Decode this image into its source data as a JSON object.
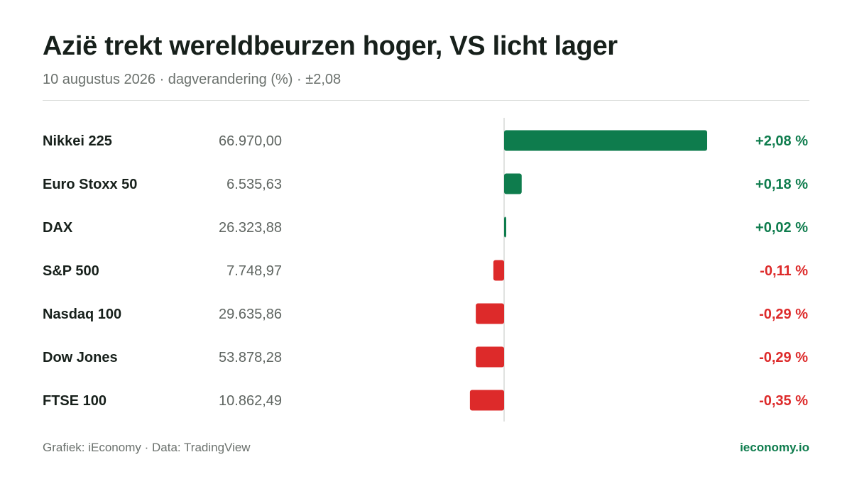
{
  "header": {
    "title": "Azië trekt wereldbeurzen hoger, VS licht lager",
    "subtitle": "10 augustus 2026 · dagverandering (%) · ±2,08"
  },
  "footer": {
    "source": "Grafiek: iEconomy · Data: TradingView",
    "brand": "ieconomy.io"
  },
  "colors": {
    "positive": "#0e7c4d",
    "negative": "#dd2a2a",
    "axis": "#d5d8d6",
    "label": "#17201b",
    "price": "#5f6561"
  },
  "chart_data": {
    "type": "bar",
    "orientation": "horizontal",
    "title": "Azië trekt wereldbeurzen hoger, VS licht lager",
    "subtitle": "10 augustus 2026 · dagverandering (%) · ±2,08",
    "xlim": [
      -2.08,
      2.08
    ],
    "grid": false,
    "categories": [
      "Nikkei 225",
      "Euro Stoxx 50",
      "DAX",
      "S&P 500",
      "Nasdaq 100",
      "Dow Jones",
      "FTSE 100"
    ],
    "prices": [
      "66.970,00",
      "6.535,63",
      "26.323,88",
      "7.748,97",
      "29.635,86",
      "53.878,28",
      "10.862,49"
    ],
    "values": [
      2.08,
      0.18,
      0.02,
      -0.11,
      -0.29,
      -0.29,
      -0.35
    ],
    "value_labels": [
      "+2,08 %",
      "+0,18 %",
      "+0,02 %",
      "-0,11 %",
      "-0,29 %",
      "-0,29 %",
      "-0,35 %"
    ]
  }
}
